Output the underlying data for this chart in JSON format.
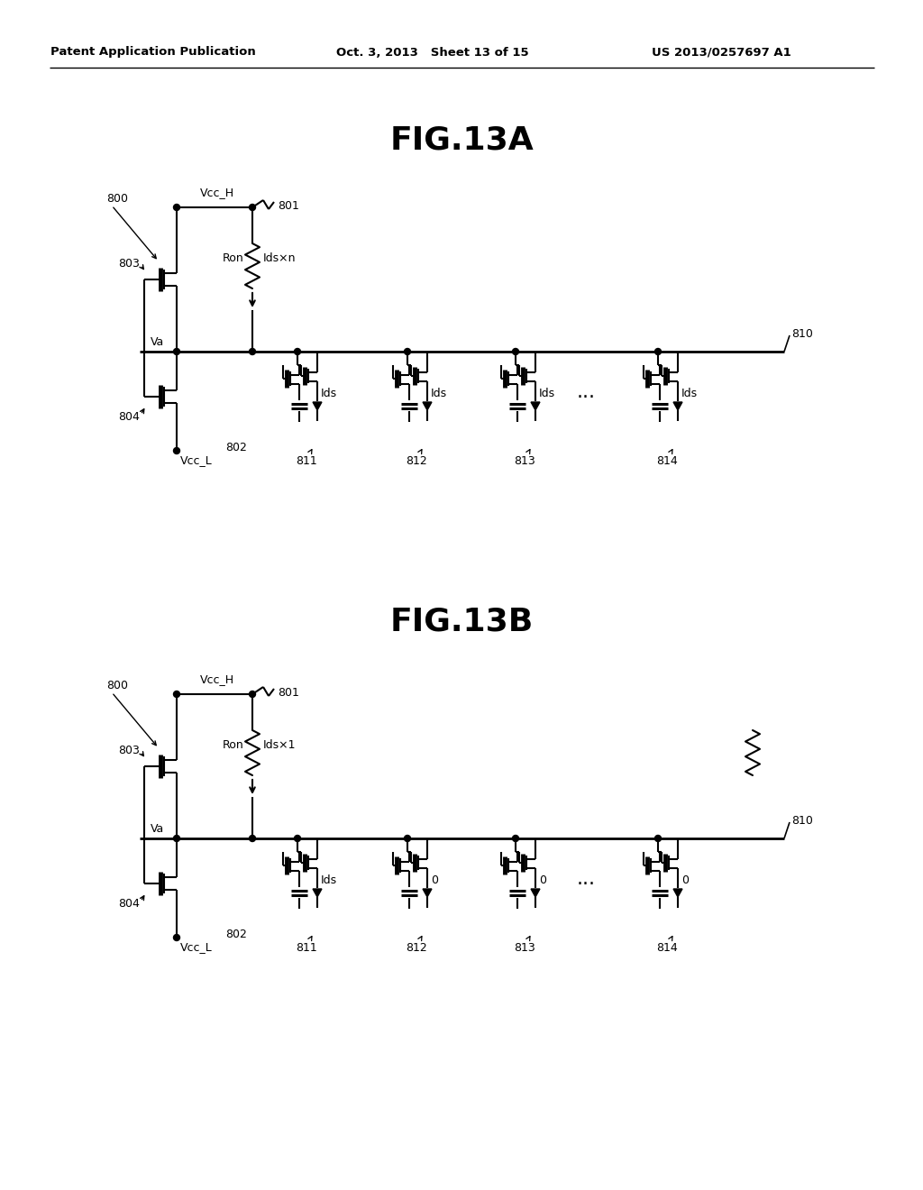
{
  "title_a": "FIG.13A",
  "title_b": "FIG.13B",
  "header_left": "Patent Application Publication",
  "header_center": "Oct. 3, 2013   Sheet 13 of 15",
  "header_right": "US 2013/0257697 A1",
  "bg_color": "#ffffff",
  "lc": "#000000",
  "label_800a": "800",
  "label_803a": "803",
  "label_804a": "804",
  "label_801a": "801",
  "label_802a": "802",
  "label_810a": "810",
  "label_811a": "811",
  "label_812a": "812",
  "label_813a": "813",
  "label_814a": "814",
  "label_VccH_a": "Vcc_H",
  "label_VccL_a": "Vcc_L",
  "label_Va_a": "Va",
  "label_Ron_a": "Ron",
  "label_Ids_a": "Ids×n",
  "label_800b": "800",
  "label_803b": "803",
  "label_804b": "804",
  "label_801b": "801",
  "label_802b": "802",
  "label_810b": "810",
  "label_811b": "811",
  "label_812b": "812",
  "label_813b": "813",
  "label_814b": "814",
  "label_VccH_b": "Vcc_H",
  "label_VccL_b": "Vcc_L",
  "label_Va_b": "Va",
  "label_Ron_b": "Ron",
  "label_Ids_b": "Ids×1",
  "fig_w": 1024,
  "fig_h": 1320
}
